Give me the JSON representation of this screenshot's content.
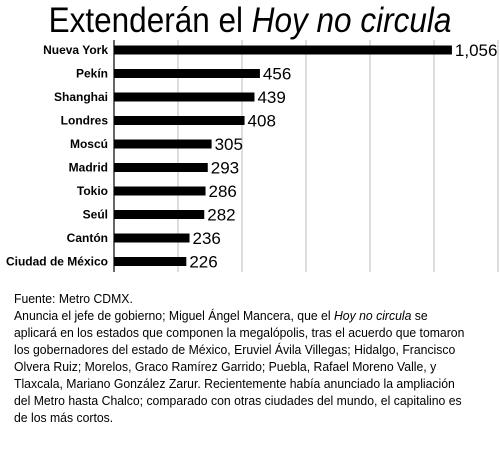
{
  "title": {
    "prefix": "Extenderán el ",
    "emphasis": "Hoy no circula"
  },
  "chart_data": {
    "type": "bar",
    "orientation": "horizontal",
    "categories": [
      "Nueva York",
      "Pekín",
      "Shanghai",
      "Londres",
      "Moscú",
      "Madrid",
      "Tokio",
      "Seúl",
      "Cantón",
      "Ciudad de México"
    ],
    "values": [
      1056,
      456,
      439,
      408,
      305,
      293,
      286,
      282,
      236,
      226
    ],
    "value_labels": [
      "1,056",
      "456",
      "439",
      "408",
      "305",
      "293",
      "286",
      "282",
      "236",
      "226"
    ],
    "xlim": [
      0,
      1200
    ],
    "grid": true,
    "bar_color": "#000000",
    "grid_color": "#aaaaaa"
  },
  "footer": {
    "source": "Fuente: Metro CDMX.",
    "text_1": "Anuncia el jefe de gobierno; Miguel Ángel Mancera, que el ",
    "text_emphasis": "Hoy no circula",
    "text_2": " se aplicará en los estados que componen la megalópolis, tras el acuerdo que tomaron los gobernadores del estado de México, Eruviel Ávila Villegas; Hidalgo, Francisco Olvera Ruiz; Morelos, Graco Ramírez Garrido; Puebla, Rafael Moreno Valle, y Tlaxcala, Mariano González Zarur. Recientemente había anunciado la ampliación del Metro hasta Chalco; comparado con otras ciudades del mundo, el capitalino es de los más cortos."
  }
}
